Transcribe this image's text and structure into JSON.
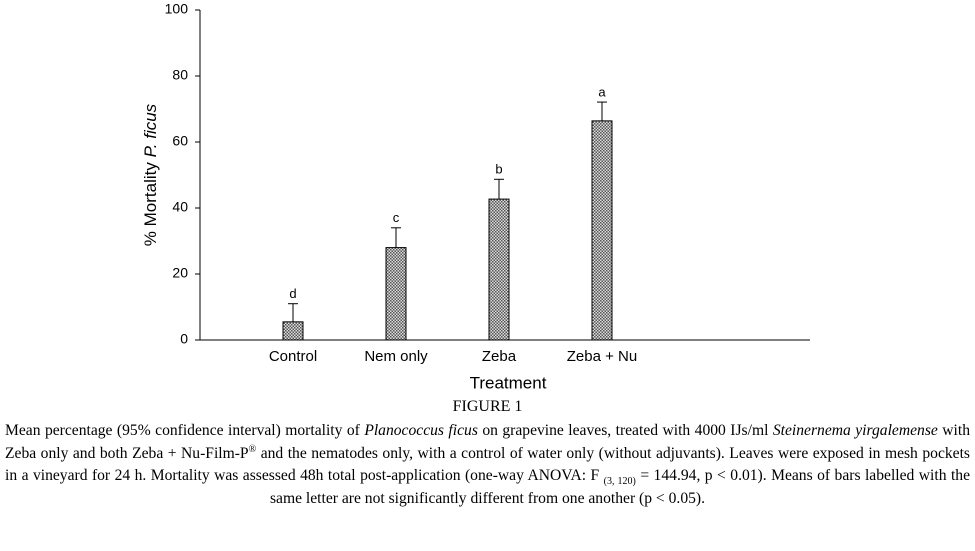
{
  "chart_data": {
    "type": "bar",
    "ylabel": [
      "% Mortality",
      "P. ficus"
    ],
    "xlabel": "Treatment",
    "categories": [
      "Control",
      "Nem only",
      "Zeba",
      "Zeba + Nu"
    ],
    "values": [
      5.5,
      28,
      42.7,
      66.4
    ],
    "errors": [
      5.5,
      6,
      6,
      5.7
    ],
    "letters": [
      "d",
      "c",
      "b",
      "a"
    ],
    "color": "#555555",
    "ylim": [
      0,
      100
    ],
    "yticks": [
      0,
      20,
      40,
      60,
      80,
      100
    ]
  },
  "figure_label": "FIGURE 1",
  "caption": [
    {
      "text": "Mean percentage (95% confidence interval) mortality of "
    },
    {
      "text": "Planococcus ficus",
      "style": "italic"
    },
    {
      "text": " on grapevine leaves, treated with 4000 IJs/ml "
    },
    {
      "text": "Steinernema yirgalemense",
      "style": "italic"
    },
    {
      "text": " with Zeba only and both Zeba + Nu-Film-P"
    },
    {
      "text": "®",
      "style": "sup"
    },
    {
      "text": " and the nematodes only, with a control of water only (without adjuvants). Leaves were exposed in mesh pockets in a vineyard for 24 h. Mortality was assessed 48h total post-application (one-way ANOVA: F "
    },
    {
      "text": "(3, 120)",
      "style": "sub"
    },
    {
      "text": " = 144.94, p < 0.01). Means of bars labelled with the same letter are not significantly different from one another (p < 0.05)."
    }
  ]
}
